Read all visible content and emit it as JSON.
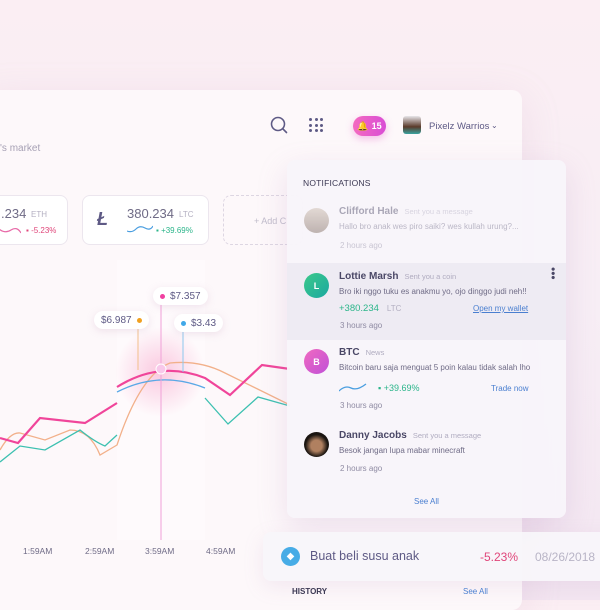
{
  "header": {
    "subtitle": "'s market",
    "notification_count": "15",
    "user_name": "Pixelz Warrios"
  },
  "coins": [
    {
      "value": ".234",
      "symbol": "ETH",
      "change": "-5.23%",
      "color": "#e0467a"
    },
    {
      "value": "380.234",
      "symbol": "LTC",
      "change": "+39.69%",
      "color": "#2bb58a"
    }
  ],
  "add_coin_label": "+ Add C",
  "chart": {
    "tooltips": [
      {
        "label": "$6.987",
        "color": "#f0a020"
      },
      {
        "label": "$7.357",
        "color": "#f040a0"
      },
      {
        "label": "$3.43",
        "color": "#40a8e8"
      }
    ],
    "x_labels": [
      "1:59AM",
      "2:59AM",
      "3:59AM",
      "4:59AM"
    ],
    "colors": {
      "pink": "#f0459a",
      "orange": "#f2b08a",
      "teal": "#3cc0b0",
      "blue": "#5aa8e6"
    }
  },
  "notifications": {
    "title": "NOTIFICATIONS",
    "items": [
      {
        "name": "Clifford Hale",
        "action": "Sent you a message",
        "message": "Hallo bro anak wes piro saiki? wes kullah urung?...",
        "time": "2 hours ago"
      },
      {
        "name": "Lottie Marsh",
        "action": "Sent you a coin",
        "initial": "L",
        "message": "Bro iki nggo tuku es anakmu yo, ojo dinggo judi neh!!",
        "amount": "+380.234",
        "symbol": "LTC",
        "link": "Open my wallet",
        "time": "3 hours ago"
      },
      {
        "name": "BTC",
        "action": "News",
        "initial": "B",
        "message": "Bitcoin baru saja menguat 5 poin kalau tidak salah lho",
        "change": "+39.69%",
        "link": "Trade now",
        "time": "3 hours ago"
      },
      {
        "name": "Danny Jacobs",
        "action": "Sent you a message",
        "message": "Besok jangan lupa mabar minecraft",
        "time": "2 hours ago"
      }
    ],
    "see_all": "See All"
  },
  "transaction": {
    "title": "Buat beli susu anak",
    "change": "-5.23%",
    "date": "08/26/2018"
  },
  "history": {
    "title": "HISTORY",
    "see_all": "See All"
  }
}
